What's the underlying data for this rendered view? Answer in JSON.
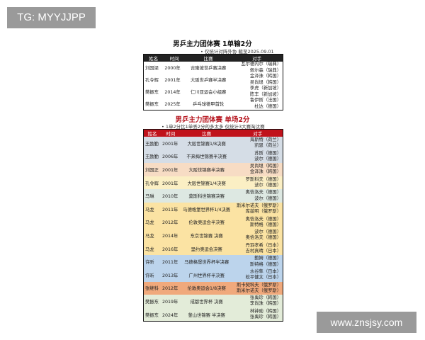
{
  "watermarks": {
    "top_left": "TG: MYYJJPP",
    "bottom_right": "www.znsjsy.com"
  },
  "table1": {
    "title": "男乒主力团体赛 1单输2分",
    "note": "• 仅统计对阵外协 截至2025.09.01",
    "headers": [
      "姓名",
      "时间",
      "比赛",
      "对手"
    ],
    "rows": [
      {
        "player": "刘国梁",
        "year": "2000年",
        "match": "吉隆坡世乒赛决赛",
        "opponents": [
          "瓦尔德内尔（瑞典）",
          "佩尔森（瑞典）"
        ]
      },
      {
        "player": "孔令辉",
        "year": "2001年",
        "match": "大阪世乒赛半决赛",
        "opponents": [
          "金泽洙（韩国）",
          "吴尚垠（韩国）"
        ]
      },
      {
        "player": "樊振东",
        "year": "2014年",
        "match": "仁川亚运会小组赛",
        "opponents": [
          "李虎（新加坡）",
          "陈丰（新加坡）"
        ]
      },
      {
        "player": "樊振东",
        "year": "2025年",
        "match": "乒乓球德甲首轮",
        "opponents": [
          "鲁伊斯（法国）",
          "杜达（德国）"
        ]
      }
    ]
  },
  "table2": {
    "title": "男乒主力团体赛 单场2分",
    "note": "• 1单2分比1单丢2分的多太多 仅统计3大赛淘汰赛",
    "headers": [
      "姓名",
      "时间",
      "比赛",
      "对手"
    ],
    "rows": [
      {
        "player": "王励勤",
        "year": "2001年",
        "match": "大阪世锦赛1/8决赛",
        "opponents": [
          "海斯特（荷兰）",
          "凯恩（荷兰）"
        ],
        "color": "#d5dde6"
      },
      {
        "player": "王励勤",
        "year": "2006年",
        "match": "不来梅世锦赛半决赛",
        "opponents": [
          "苏斯（德国）",
          "波尔（德国）"
        ],
        "color": "#d5dde6"
      },
      {
        "player": "刘国正",
        "year": "2001年",
        "match": "大阪世锦赛半决赛",
        "opponents": [
          "吴尚垠（韩国）",
          "金泽洙（韩国）"
        ],
        "color": "#f7dcc4"
      },
      {
        "player": "孔令辉",
        "year": "2001年",
        "match": "大阪世锦赛1/4决赛",
        "opponents": [
          "罗斯科夫（德国）",
          "波尔（德国）"
        ],
        "color": "#fbefc4"
      },
      {
        "player": "马琳",
        "year": "2010年",
        "match": "莫斯科世锦赛决赛",
        "opponents": [
          "奥恰洛夫（德国）",
          "波尔（德国）"
        ],
        "color": "#dde8e2"
      },
      {
        "player": "马龙",
        "year": "2011年",
        "match": "马德格堡世界杯1/4决赛",
        "opponents": [
          "斯米尔诺夫（俄罗斯）",
          "库兹明（俄罗斯）"
        ],
        "color": "#fbe3a3"
      },
      {
        "player": "马龙",
        "year": "2012年",
        "match": "伦敦奥运会半决赛",
        "opponents": [
          "奥恰洛夫（德国）",
          "斯特格（德国）"
        ],
        "color": "#fbe3a3"
      },
      {
        "player": "马龙",
        "year": "2014年",
        "match": "东京世锦赛 决赛",
        "opponents": [
          "波尔（德国）",
          "奥恰洛夫（德国）"
        ],
        "color": "#fbe3a3"
      },
      {
        "player": "马龙",
        "year": "2016年",
        "match": "里约奥运会决赛",
        "opponents": [
          "丹羽孝希（日本）",
          "吉村真晴（日本）"
        ],
        "color": "#fbe3a3"
      },
      {
        "player": "许昕",
        "year": "2011年",
        "match": "马德格堡世界杯半决赛",
        "opponents": [
          "鲍姆（德国）",
          "斯特格（德国）"
        ],
        "color": "#bcd4ec"
      },
      {
        "player": "许昕",
        "year": "2013年",
        "match": "广州世界杯半决赛",
        "opponents": [
          "水谷隼（日本）",
          "松平健太（日本）"
        ],
        "color": "#bcd4ec"
      },
      {
        "player": "张继科",
        "year": "2012年",
        "match": "伦敦奥运会1/8决赛",
        "opponents": [
          "斯卡契科夫（俄罗斯）",
          "斯米尔诺夫（俄罗斯）"
        ],
        "color": "#f0a97c"
      },
      {
        "player": "樊振东",
        "year": "2019年",
        "match": "成都世界杯 决赛",
        "opponents": [
          "张禹珍（韩国）",
          "李尚洙（韩国）"
        ],
        "color": "#e3ecd9"
      },
      {
        "player": "樊振东",
        "year": "2024年",
        "match": "釜山世锦赛 半决赛",
        "opponents": [
          "林钟勋（韩国）",
          "张禹珍（韩国）"
        ],
        "color": "#e3ecd9"
      }
    ]
  }
}
